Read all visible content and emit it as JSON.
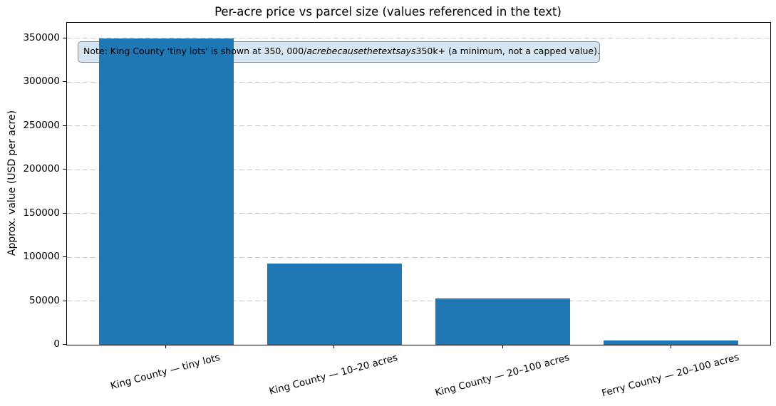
{
  "chart_data": {
    "type": "bar",
    "title": "Per-acre price vs parcel size (values referenced in the text)",
    "xlabel": "",
    "ylabel": "Approx. value (USD per acre)",
    "categories": [
      "King County — tiny lots",
      "King County — 10–20 acres",
      "King County — 20–100 acres",
      "Ferry County — 20–100 acres"
    ],
    "values": [
      350000,
      93000,
      53000,
      4500
    ],
    "yticks": [
      0,
      50000,
      100000,
      150000,
      200000,
      250000,
      300000,
      350000
    ],
    "ylim": [
      0,
      367500
    ],
    "grid": "horizontal-dashed",
    "legend": "none",
    "annotation": "Note: King County 'tiny lots' is shown at 350, 000/acrebecausethetextsays350k+ (a minimum, not a capped value)."
  },
  "annotation_parts": {
    "before": "Note: King County 'tiny lots' is shown at 350, 000/",
    "italic": "acrebecausethetextsays",
    "after": "350k+ (a minimum, not a capped value)."
  },
  "colors": {
    "bar": "#1f77b4",
    "grid": "#c9c9c9",
    "axis": "#000000",
    "annotation_bg": "#d5e5f1",
    "annotation_border": "#7d8c99"
  }
}
